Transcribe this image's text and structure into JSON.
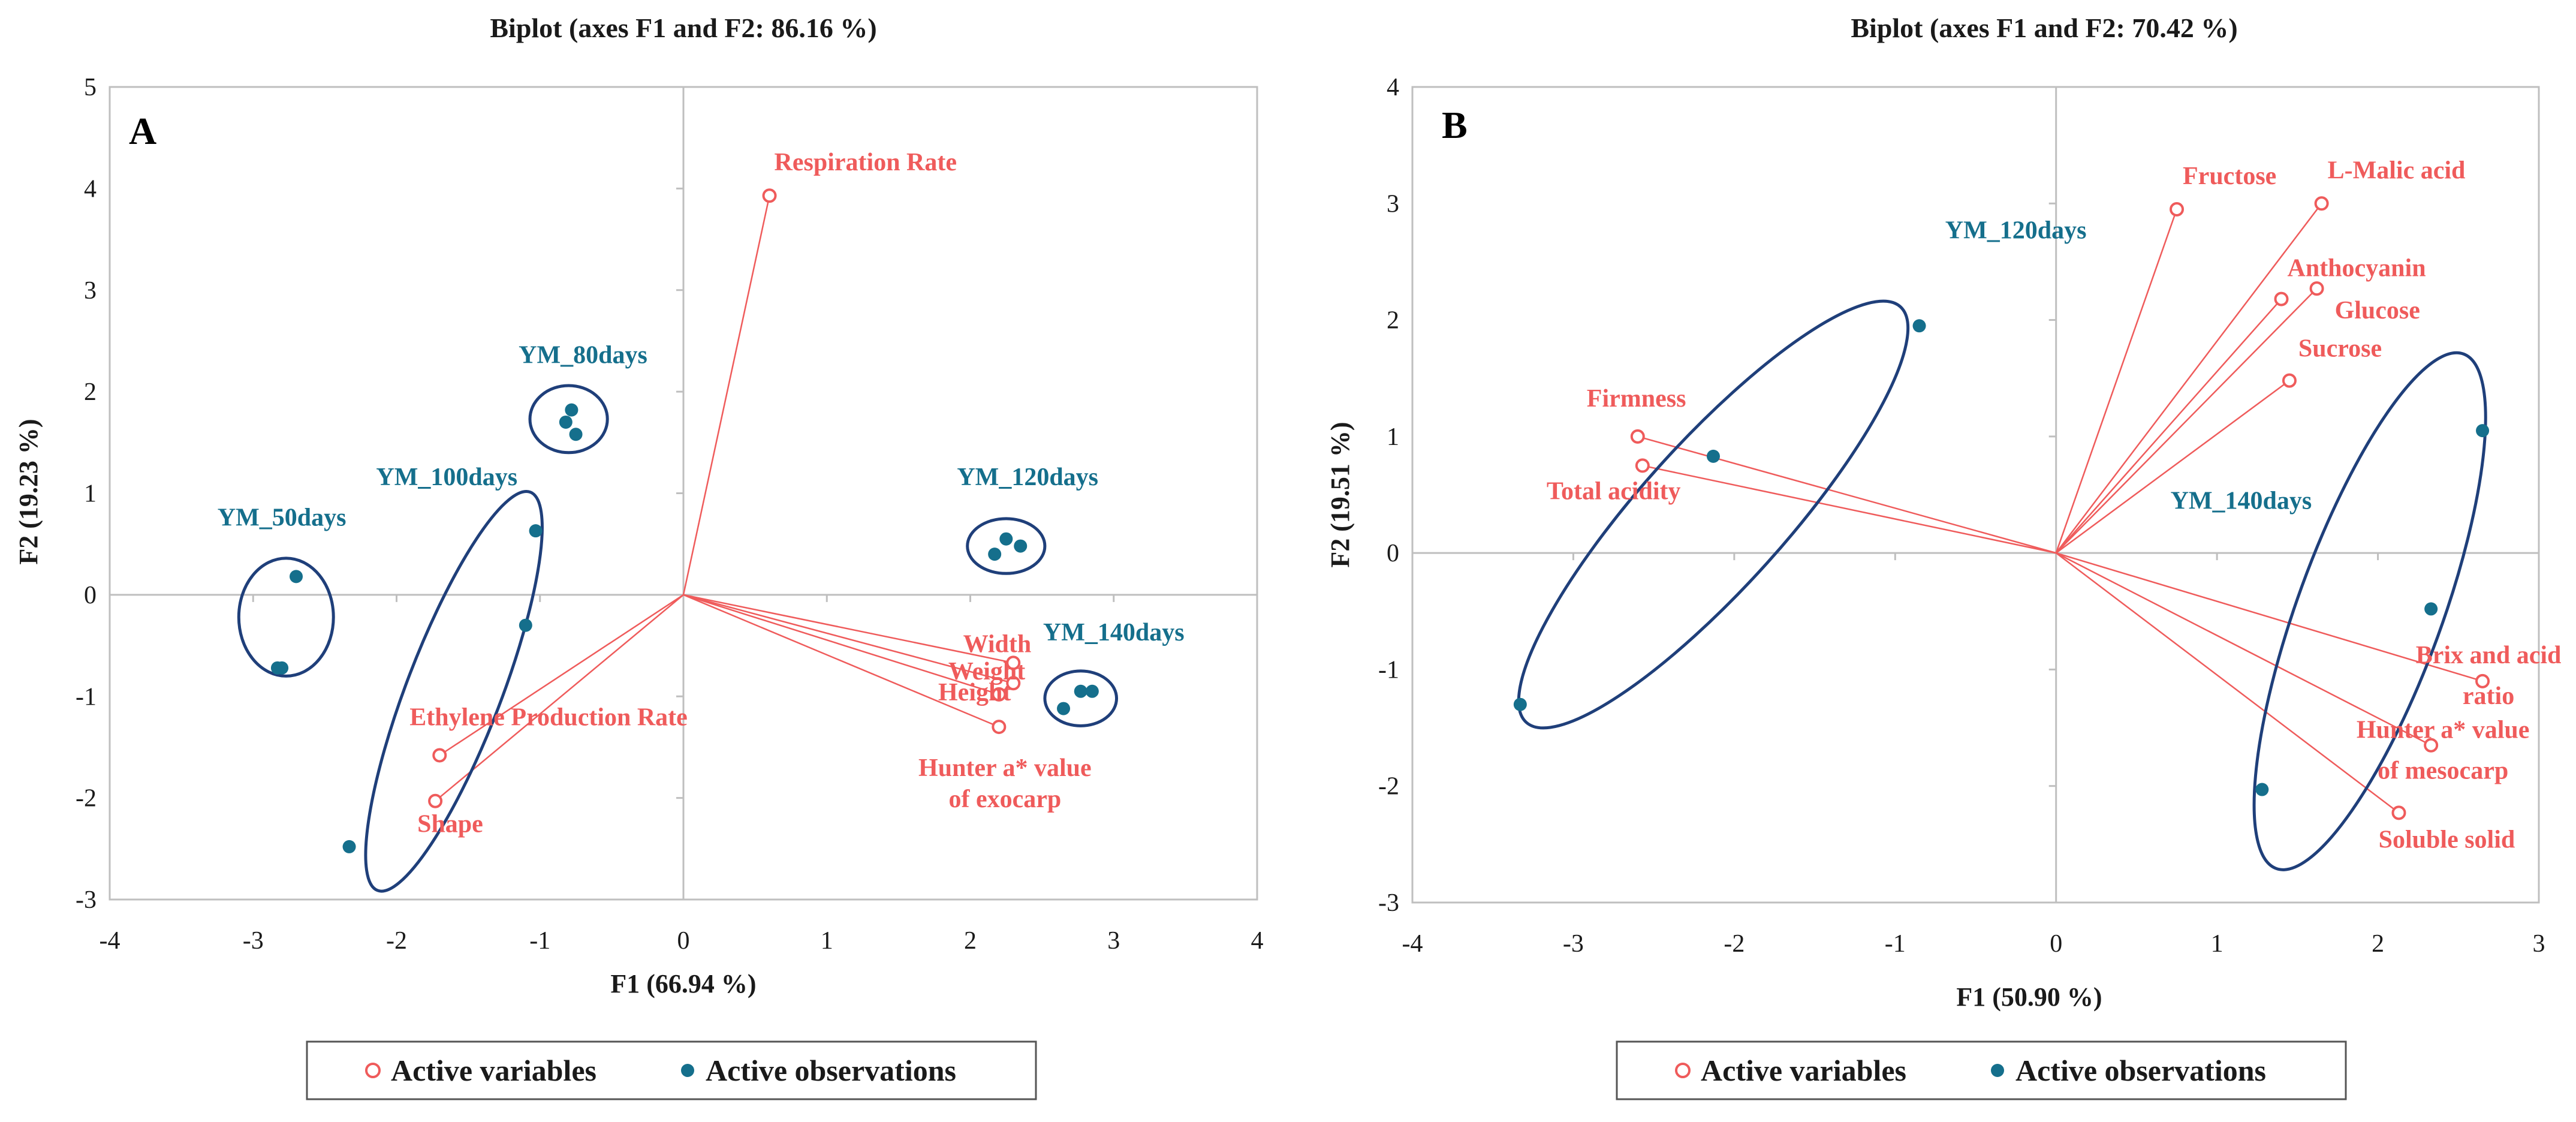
{
  "colors": {
    "variable": "#ef5b5b",
    "observation": "#156f8c",
    "ellipse": "#1f3f7a",
    "axis": "#bfbfbf",
    "text": "#1a1a1a"
  },
  "chart_data": [
    {
      "type": "scatter",
      "panel_letter": "A",
      "title": "Biplot (axes F1 and F2: 86.16 %)",
      "xlabel": "F1 (66.94 %)",
      "ylabel": "F2 (19.23 %)",
      "xlim": [
        -4,
        4
      ],
      "ylim": [
        -3,
        5
      ],
      "xticks": [
        "-4",
        "-3",
        "-2",
        "-1",
        "0",
        "1",
        "2",
        "3",
        "4"
      ],
      "yticks": [
        "-3",
        "-2",
        "-1",
        "0",
        "1",
        "2",
        "3",
        "4",
        "5"
      ],
      "grid": false,
      "legend": {
        "position": "bottom",
        "entries": [
          "Active variables",
          "Active observations"
        ]
      },
      "variables": [
        {
          "label": "Respiration Rate",
          "x": 0.6,
          "y": 3.93
        },
        {
          "label": "Width",
          "x": 2.3,
          "y": -0.67
        },
        {
          "label": "Weight",
          "x": 2.3,
          "y": -0.87
        },
        {
          "label": "Height",
          "x": 2.2,
          "y": -0.98
        },
        {
          "label": "Hunter a* value of exocarp",
          "x": 2.2,
          "y": -1.3
        },
        {
          "label": "Ethylene Production Rate",
          "x": -1.7,
          "y": -1.58
        },
        {
          "label": "Shape",
          "x": -1.73,
          "y": -2.03
        }
      ],
      "observations": [
        {
          "x": -2.7,
          "y": 0.18
        },
        {
          "x": -2.8,
          "y": -0.72
        },
        {
          "x": -2.83,
          "y": -0.72
        },
        {
          "x": -1.03,
          "y": 0.63
        },
        {
          "x": -1.1,
          "y": -0.3
        },
        {
          "x": -2.33,
          "y": -2.48
        },
        {
          "x": -0.78,
          "y": 1.82
        },
        {
          "x": -0.82,
          "y": 1.7
        },
        {
          "x": -0.75,
          "y": 1.58
        },
        {
          "x": 2.25,
          "y": 0.55
        },
        {
          "x": 2.35,
          "y": 0.48
        },
        {
          "x": 2.17,
          "y": 0.4
        },
        {
          "x": 2.65,
          "y": -1.12
        },
        {
          "x": 2.77,
          "y": -0.95
        },
        {
          "x": 2.85,
          "y": -0.95
        }
      ],
      "groups": [
        {
          "label": "YM_50days",
          "center": [
            -2.77,
            -0.22
          ],
          "rx": 0.33,
          "ry": 0.58,
          "angle": 0
        },
        {
          "label": "YM_100days",
          "center": [
            -1.6,
            -0.95
          ],
          "rx": 0.33,
          "ry": 2.1,
          "angle": 21
        },
        {
          "label": "YM_80days",
          "center": [
            -0.8,
            1.73
          ],
          "rx": 0.27,
          "ry": 0.33,
          "angle": 0
        },
        {
          "label": "YM_120days",
          "center": [
            2.25,
            0.48
          ],
          "rx": 0.27,
          "ry": 0.27,
          "angle": 0
        },
        {
          "label": "YM_140days",
          "center": [
            2.77,
            -1.02
          ],
          "rx": 0.25,
          "ry": 0.27,
          "angle": 0
        }
      ]
    },
    {
      "type": "scatter",
      "panel_letter": "B",
      "title": "Biplot (axes F1 and F2: 70.42 %)",
      "xlabel": "F1 (50.90 %)",
      "ylabel": "F2 (19.51 %)",
      "xlim": [
        -4,
        3
      ],
      "ylim": [
        -3,
        4
      ],
      "xticks": [
        "-4",
        "-3",
        "-2",
        "-1",
        "0",
        "1",
        "2",
        "3"
      ],
      "yticks": [
        "-3",
        "-2",
        "-1",
        "0",
        "1",
        "2",
        "3",
        "4"
      ],
      "grid": false,
      "legend": {
        "position": "bottom",
        "entries": [
          "Active variables",
          "Active observations"
        ]
      },
      "variables": [
        {
          "label": "Fructose",
          "x": 0.75,
          "y": 2.95
        },
        {
          "label": "L-Malic acid",
          "x": 1.65,
          "y": 3.0
        },
        {
          "label": "Anthocyanin",
          "x": 1.4,
          "y": 2.18
        },
        {
          "label": "Glucose",
          "x": 1.62,
          "y": 2.27
        },
        {
          "label": "Sucrose",
          "x": 1.45,
          "y": 1.48
        },
        {
          "label": "Firmness",
          "x": -2.6,
          "y": 1.0
        },
        {
          "label": "Total acidity",
          "x": -2.57,
          "y": 0.75
        },
        {
          "label": "Brix and acid ratio",
          "x": 2.65,
          "y": -1.1
        },
        {
          "label": "Hunter a* value of mesocarp",
          "x": 2.33,
          "y": -1.65
        },
        {
          "label": "Soluble solid",
          "x": 2.13,
          "y": -2.23
        }
      ],
      "observations": [
        {
          "x": -0.85,
          "y": 1.95
        },
        {
          "x": -2.13,
          "y": 0.83
        },
        {
          "x": -3.33,
          "y": -1.3
        },
        {
          "x": 2.65,
          "y": 1.05
        },
        {
          "x": 2.33,
          "y": -0.48
        },
        {
          "x": 1.28,
          "y": -2.03
        }
      ],
      "groups": [
        {
          "label": "YM_120days",
          "center": [
            -2.13,
            0.33
          ],
          "rx": 0.45,
          "ry": 2.4,
          "angle": 42
        },
        {
          "label": "YM_140days",
          "center": [
            1.95,
            -0.5
          ],
          "rx": 0.45,
          "ry": 2.35,
          "angle": 20
        }
      ]
    }
  ]
}
